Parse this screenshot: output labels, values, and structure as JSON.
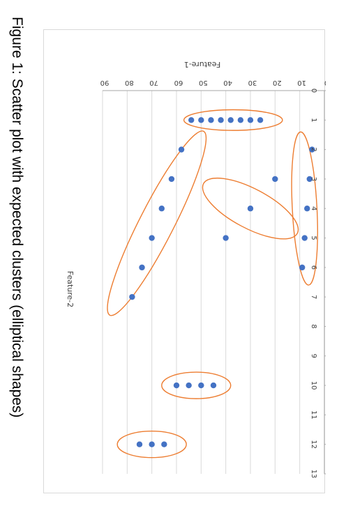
{
  "caption": "Figure 1: Scatter plot with expected clusters (elliptical shapes)",
  "chart_data": {
    "type": "scatter",
    "xlabel": "Feature-2",
    "ylabel": "Feature-1",
    "xlim": [
      0,
      13
    ],
    "ylim": [
      0,
      90
    ],
    "x_ticks": [
      "0",
      "1",
      "2",
      "3",
      "4",
      "5",
      "6",
      "7",
      "8",
      "9",
      "10",
      "11",
      "12",
      "13"
    ],
    "y_ticks": [
      "0",
      "10",
      "20",
      "30",
      "40",
      "50",
      "60",
      "70",
      "80",
      "90"
    ],
    "grid": true,
    "orientation": "rotated 90 degrees clockwise",
    "marker_color": "#4472c4",
    "cluster_outline_color": "#ed7d31",
    "points": [
      [
        1,
        26
      ],
      [
        1,
        30
      ],
      [
        1,
        34
      ],
      [
        1,
        38
      ],
      [
        1,
        42
      ],
      [
        1,
        46
      ],
      [
        1,
        50
      ],
      [
        1,
        54
      ],
      [
        2,
        5
      ],
      [
        3,
        6
      ],
      [
        4,
        7
      ],
      [
        5,
        8
      ],
      [
        6,
        9
      ],
      [
        3,
        20
      ],
      [
        4,
        30
      ],
      [
        5,
        40
      ],
      [
        2,
        58
      ],
      [
        3,
        62
      ],
      [
        4,
        66
      ],
      [
        5,
        70
      ],
      [
        6,
        74
      ],
      [
        7,
        78
      ],
      [
        10,
        45
      ],
      [
        10,
        50
      ],
      [
        10,
        55
      ],
      [
        10,
        60
      ],
      [
        12,
        65
      ],
      [
        12,
        70
      ],
      [
        12,
        75
      ]
    ],
    "clusters": [
      {
        "center": [
          1,
          37
        ],
        "radius_x": 0.35,
        "radius_y": 20,
        "angle": 0
      },
      {
        "center": [
          4,
          8
        ],
        "radius_x": 2.6,
        "radius_y": 5,
        "angle": -3
      },
      {
        "center": [
          4,
          30
        ],
        "radius_x": 1.8,
        "radius_y": 8,
        "angle": -62
      },
      {
        "center": [
          4.5,
          68
        ],
        "radius_x": 3.5,
        "radius_y": 7,
        "angle": 27
      },
      {
        "center": [
          10,
          52
        ],
        "radius_x": 0.45,
        "radius_y": 14,
        "angle": 0
      },
      {
        "center": [
          12,
          70
        ],
        "radius_x": 0.45,
        "radius_y": 14,
        "angle": 0
      }
    ]
  }
}
